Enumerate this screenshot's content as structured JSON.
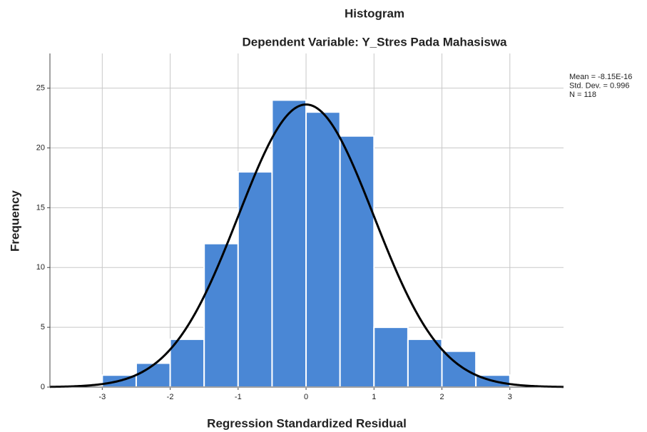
{
  "chart_data": {
    "type": "histogram",
    "title": "Histogram",
    "subtitle": "Dependent Variable: Y_Stres Pada Mahasiswa",
    "x_label": "Regression Standardized Residual",
    "y_label": "Frequency",
    "bins": [
      -3,
      -2.5,
      -2,
      -1.5,
      -1,
      -0.5,
      0,
      0.5,
      1,
      1.5,
      2,
      2.5,
      3
    ],
    "values": [
      1,
      2,
      4,
      12,
      18,
      24,
      23,
      21,
      5,
      4,
      3,
      1
    ],
    "color": "#4a87d5",
    "curve_color": "#000000",
    "stats": [
      {
        "value": -8.15e-16,
        "label": "Mean = -8.15E-16"
      },
      {
        "value": 0.996,
        "label": "Std. Dev. = 0.996"
      },
      {
        "value": 118,
        "label": "N = 118"
      }
    ],
    "xlim": [
      -3.77,
      3.79
    ],
    "ylim": [
      0,
      27.9
    ],
    "xticks": [
      -3,
      -2,
      -1,
      0,
      1,
      2,
      3
    ],
    "yticks": [
      0,
      5,
      10,
      15,
      20,
      25
    ],
    "grid": true
  }
}
